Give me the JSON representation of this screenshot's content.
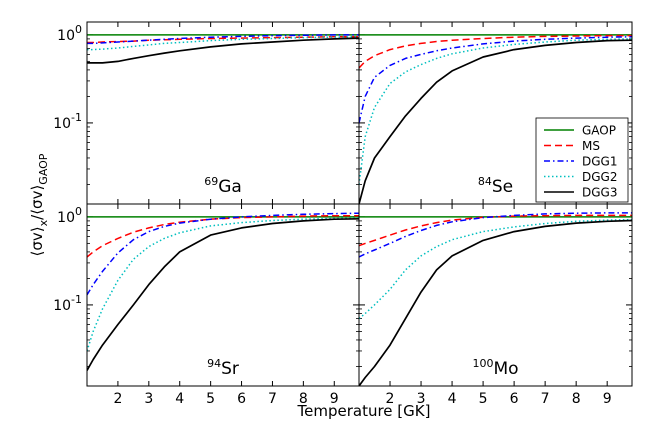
{
  "chart_data": {
    "type": "line",
    "xlabel": "Temperature [GK]",
    "ylabel_main": "⟨σv⟩",
    "ylabel_sub": "x",
    "ylabel_mid": "/⟨σv⟩",
    "ylabel_sub2": "GAOP",
    "xlim": [
      1.0,
      9.8
    ],
    "ylim": [
      0.012,
      1.4
    ],
    "x_ticks": [
      2,
      3,
      4,
      5,
      6,
      7,
      8,
      9
    ],
    "x_tick_labels": [
      "2",
      "3",
      "4",
      "5",
      "6",
      "7",
      "8",
      "9"
    ],
    "y_ticks": [
      {
        "value": 1,
        "base": "10",
        "exp": "0"
      },
      {
        "value": 0.1,
        "base": "10",
        "exp": "-1"
      }
    ],
    "x": [
      1.0,
      1.2,
      1.5,
      2.0,
      2.5,
      3.0,
      3.5,
      4.0,
      5.0,
      6.0,
      7.0,
      8.0,
      9.0,
      9.8
    ],
    "series_styles": [
      {
        "name": "GAOP",
        "color": "#008000",
        "dash": ""
      },
      {
        "name": "MS",
        "color": "#ff0000",
        "dash": "7,4"
      },
      {
        "name": "DGG1",
        "color": "#0000ff",
        "dash": "6,3,1.5,3"
      },
      {
        "name": "DGG2",
        "color": "#00bfbf",
        "dash": "1.5,2.5"
      },
      {
        "name": "DGG3",
        "color": "#000000",
        "dash": ""
      }
    ],
    "legend": {
      "location": "lower-right of Se panel",
      "entries": [
        "GAOP",
        "MS",
        "DGG1",
        "DGG2",
        "DGG3"
      ]
    },
    "panels": [
      {
        "label_sup": "69",
        "label_main": "Ga",
        "series": [
          {
            "name": "GAOP",
            "values": [
              1,
              1,
              1,
              1,
              1,
              1,
              1,
              1,
              1,
              1,
              1,
              1,
              1,
              1
            ]
          },
          {
            "name": "MS",
            "values": [
              0.82,
              0.82,
              0.83,
              0.84,
              0.85,
              0.87,
              0.88,
              0.89,
              0.91,
              0.92,
              0.93,
              0.94,
              0.95,
              0.95
            ]
          },
          {
            "name": "DGG1",
            "values": [
              0.8,
              0.8,
              0.81,
              0.83,
              0.85,
              0.87,
              0.89,
              0.91,
              0.94,
              0.96,
              0.98,
              0.99,
              1.0,
              1.0
            ]
          },
          {
            "name": "DGG2",
            "values": [
              0.68,
              0.68,
              0.69,
              0.71,
              0.74,
              0.77,
              0.8,
              0.82,
              0.86,
              0.89,
              0.91,
              0.93,
              0.94,
              0.95
            ]
          },
          {
            "name": "DGG3",
            "values": [
              0.48,
              0.48,
              0.48,
              0.5,
              0.54,
              0.58,
              0.62,
              0.66,
              0.73,
              0.79,
              0.83,
              0.87,
              0.9,
              0.92
            ]
          }
        ]
      },
      {
        "label_sup": "84",
        "label_main": "Se",
        "series": [
          {
            "name": "GAOP",
            "values": [
              1,
              1,
              1,
              1,
              1,
              1,
              1,
              1,
              1,
              1,
              1,
              1,
              1,
              1
            ]
          },
          {
            "name": "MS",
            "values": [
              0.42,
              0.5,
              0.58,
              0.68,
              0.75,
              0.8,
              0.84,
              0.87,
              0.91,
              0.94,
              0.96,
              0.97,
              0.98,
              0.98
            ]
          },
          {
            "name": "DGG1",
            "values": [
              0.1,
              0.2,
              0.33,
              0.45,
              0.54,
              0.6,
              0.66,
              0.71,
              0.79,
              0.85,
              0.89,
              0.92,
              0.94,
              0.95
            ]
          },
          {
            "name": "DGG2",
            "values": [
              0.02,
              0.07,
              0.15,
              0.28,
              0.38,
              0.46,
              0.54,
              0.61,
              0.71,
              0.78,
              0.83,
              0.87,
              0.89,
              0.9
            ]
          },
          {
            "name": "DGG3",
            "values": [
              0.012,
              0.022,
              0.04,
              0.07,
              0.12,
              0.19,
              0.29,
              0.39,
              0.56,
              0.68,
              0.76,
              0.82,
              0.86,
              0.87
            ]
          }
        ]
      },
      {
        "label_sup": "94",
        "label_main": "Sr",
        "series": [
          {
            "name": "GAOP",
            "values": [
              1,
              1,
              1,
              1,
              1,
              1,
              1,
              1,
              1,
              1,
              1,
              1,
              1,
              1
            ]
          },
          {
            "name": "MS",
            "values": [
              0.35,
              0.4,
              0.47,
              0.57,
              0.67,
              0.75,
              0.82,
              0.87,
              0.94,
              0.98,
              1.0,
              1.02,
              1.03,
              1.03
            ]
          },
          {
            "name": "DGG1",
            "values": [
              0.13,
              0.17,
              0.24,
              0.39,
              0.55,
              0.68,
              0.78,
              0.85,
              0.94,
              1.0,
              1.04,
              1.07,
              1.09,
              1.1
            ]
          },
          {
            "name": "DGG2",
            "values": [
              0.03,
              0.05,
              0.09,
              0.19,
              0.33,
              0.46,
              0.57,
              0.66,
              0.79,
              0.86,
              0.91,
              0.94,
              0.96,
              0.97
            ]
          },
          {
            "name": "DGG3",
            "values": [
              0.018,
              0.024,
              0.035,
              0.06,
              0.1,
              0.17,
              0.27,
              0.4,
              0.62,
              0.75,
              0.84,
              0.9,
              0.94,
              0.95
            ]
          }
        ]
      },
      {
        "label_sup": "100",
        "label_main": "Mo",
        "series": [
          {
            "name": "GAOP",
            "values": [
              1,
              1,
              1,
              1,
              1,
              1,
              1,
              1,
              1,
              1,
              1,
              1,
              1,
              1
            ]
          },
          {
            "name": "MS",
            "values": [
              0.47,
              0.5,
              0.54,
              0.62,
              0.71,
              0.79,
              0.86,
              0.92,
              0.99,
              1.02,
              1.03,
              1.04,
              1.04,
              1.04
            ]
          },
          {
            "name": "DGG1",
            "values": [
              0.35,
              0.38,
              0.42,
              0.5,
              0.6,
              0.7,
              0.8,
              0.88,
              0.98,
              1.04,
              1.08,
              1.1,
              1.11,
              1.11
            ]
          },
          {
            "name": "DGG2",
            "values": [
              0.07,
              0.08,
              0.1,
              0.15,
              0.25,
              0.36,
              0.46,
              0.55,
              0.68,
              0.77,
              0.84,
              0.89,
              0.92,
              0.93
            ]
          },
          {
            "name": "DGG3",
            "values": [
              0.012,
              0.015,
              0.02,
              0.035,
              0.07,
              0.14,
              0.25,
              0.36,
              0.54,
              0.68,
              0.78,
              0.85,
              0.89,
              0.91
            ]
          }
        ]
      }
    ]
  }
}
